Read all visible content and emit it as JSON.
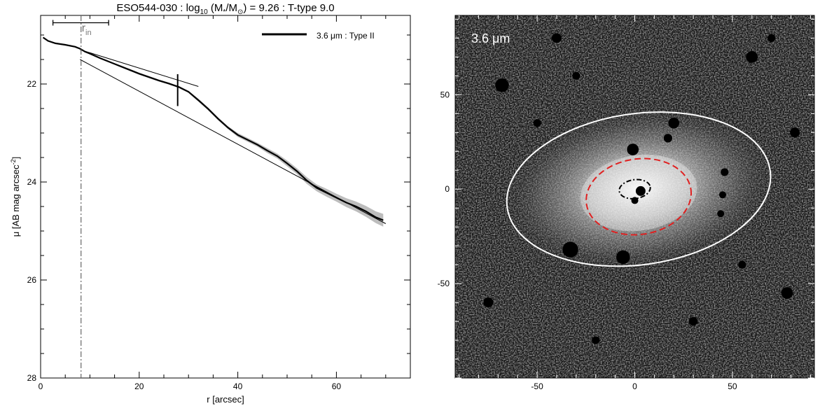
{
  "figure": {
    "title_parts": {
      "prefix": "ESO544-030 : log",
      "sub10": "10",
      "mid1": " (M",
      "sub_star": "*",
      "mid2": "/M",
      "sun": "⊙",
      "suffix": ") = 9.26 : T-type 9.0"
    }
  },
  "chart_data": [
    {
      "type": "line",
      "title": "ESO544-030 : log10 (M*/M⊙) = 9.26 : T-type 9.0",
      "xlabel": "r [arcsec]",
      "ylabel_parts": {
        "main": "μ [AB mag arcsec",
        "sup": "-2",
        "end": "]"
      },
      "xlim": [
        0,
        75
      ],
      "ylim": [
        28,
        20.6
      ],
      "y_inverted": true,
      "x_ticks": [
        0,
        20,
        40,
        60
      ],
      "y_ticks": [
        22,
        24,
        26,
        28
      ],
      "legend": {
        "label": "3.6 μm : Type II",
        "placement": "top-right"
      },
      "rin_label": "r",
      "rin_sub": "in",
      "rin_x": 8.2,
      "rin_bar": {
        "x": [
          2.5,
          13.8
        ],
        "y": 20.75
      },
      "break_marker": {
        "x": 27.8,
        "y": [
          21.8,
          22.45
        ]
      },
      "series": [
        {
          "name": "3.6 μm : Type II",
          "x": [
            0.5,
            1.5,
            3,
            5,
            7,
            8,
            9,
            10,
            12,
            14,
            16,
            18,
            20,
            22,
            24,
            26,
            28,
            30,
            32,
            34,
            36,
            38,
            40,
            42,
            44,
            46,
            48,
            50,
            52,
            54,
            56,
            58,
            60,
            62,
            64,
            66,
            68,
            69.5
          ],
          "y": [
            21.05,
            21.12,
            21.17,
            21.2,
            21.24,
            21.28,
            21.34,
            21.38,
            21.47,
            21.55,
            21.63,
            21.71,
            21.79,
            21.86,
            21.93,
            21.99,
            22.06,
            22.16,
            22.33,
            22.51,
            22.71,
            22.89,
            23.04,
            23.14,
            23.24,
            23.36,
            23.47,
            23.62,
            23.78,
            23.97,
            24.12,
            24.22,
            24.32,
            24.42,
            24.5,
            24.6,
            24.72,
            24.78
          ],
          "err": [
            0.01,
            0.01,
            0.01,
            0.01,
            0.01,
            0.01,
            0.01,
            0.01,
            0.01,
            0.01,
            0.02,
            0.02,
            0.02,
            0.02,
            0.02,
            0.02,
            0.02,
            0.02,
            0.03,
            0.03,
            0.03,
            0.03,
            0.04,
            0.04,
            0.04,
            0.05,
            0.05,
            0.06,
            0.06,
            0.07,
            0.07,
            0.08,
            0.08,
            0.09,
            0.1,
            0.11,
            0.12,
            0.13
          ]
        }
      ],
      "fit_lines": [
        {
          "x": [
            8,
            32
          ],
          "y": [
            21.3,
            22.05
          ]
        },
        {
          "x": [
            8,
            70
          ],
          "y": [
            21.5,
            24.85
          ]
        }
      ]
    },
    {
      "type": "heatmap",
      "image_label": "3.6 μm",
      "xlim": [
        -92,
        92
      ],
      "ylim": [
        -100,
        92
      ],
      "x_ticks": [
        -50,
        0,
        50
      ],
      "y_ticks": [
        -50,
        0,
        50
      ],
      "colors": {
        "outer_ellipse": "#ffffff",
        "middle_ellipse": "#e02020",
        "inner_ellipse": "#000000"
      },
      "ellipses": [
        {
          "cx": 2,
          "cy": 0,
          "a": 68,
          "b": 40,
          "angle": 8,
          "style": "solid"
        },
        {
          "cx": 2,
          "cy": -4,
          "a": 27,
          "b": 20,
          "angle": 8,
          "style": "dashed"
        },
        {
          "cx": 0,
          "cy": 0,
          "a": 8,
          "b": 5,
          "angle": 8,
          "style": "dash-dot"
        }
      ],
      "mask_dots": [
        {
          "x": -1,
          "y": 21,
          "r": 3
        },
        {
          "x": 17,
          "y": 27,
          "r": 2.2
        },
        {
          "x": 20,
          "y": 35,
          "r": 2.8
        },
        {
          "x": 3,
          "y": -1,
          "r": 2.5
        },
        {
          "x": 0,
          "y": -6,
          "r": 1.8
        },
        {
          "x": -33,
          "y": -32,
          "r": 4
        },
        {
          "x": -6,
          "y": -36,
          "r": 3.5
        },
        {
          "x": 46,
          "y": 9,
          "r": 2
        },
        {
          "x": 45,
          "y": -3,
          "r": 1.8
        },
        {
          "x": 44,
          "y": -13,
          "r": 1.8
        },
        {
          "x": -68,
          "y": 55,
          "r": 3.5
        },
        {
          "x": -40,
          "y": 80,
          "r": 2.5
        },
        {
          "x": 60,
          "y": 70,
          "r": 3
        },
        {
          "x": 78,
          "y": -55,
          "r": 3
        },
        {
          "x": -75,
          "y": -60,
          "r": 2.5
        },
        {
          "x": 30,
          "y": -70,
          "r": 2.2
        },
        {
          "x": -30,
          "y": 60,
          "r": 2
        },
        {
          "x": 82,
          "y": 30,
          "r": 2.5
        },
        {
          "x": -20,
          "y": -80,
          "r": 2
        },
        {
          "x": 55,
          "y": -40,
          "r": 2
        },
        {
          "x": -50,
          "y": 35,
          "r": 2
        },
        {
          "x": 70,
          "y": 80,
          "r": 2
        }
      ]
    }
  ]
}
